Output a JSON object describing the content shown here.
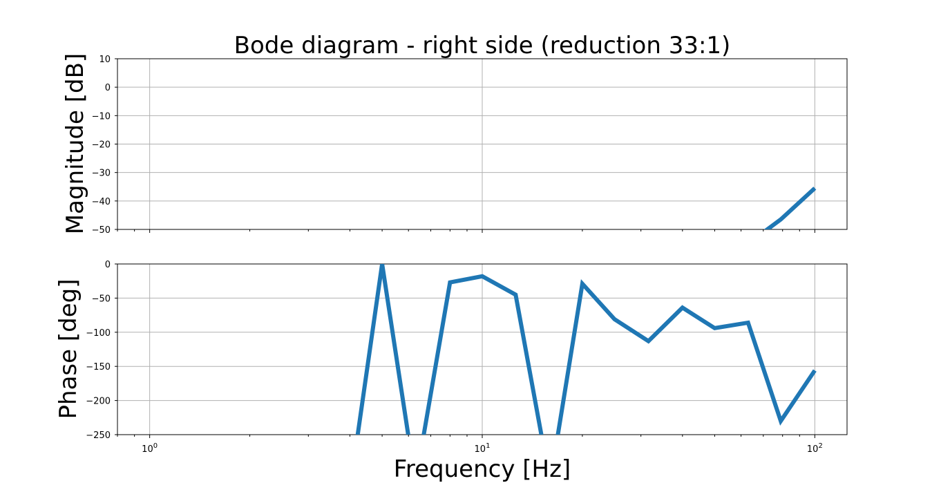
{
  "chart_data": {
    "type": "line",
    "title": "Bode diagram - right side (reduction 33:1)",
    "xlabel": "Frequency [Hz]",
    "xscale": "log",
    "xlim": [
      0.8,
      125
    ],
    "x_tick_labels": [
      "10^0",
      "10^1",
      "10^2"
    ],
    "grid": true,
    "color": "#1f77b4",
    "subplots": [
      {
        "name": "magnitude",
        "ylabel": "Magnitude [dB]",
        "ylim": [
          -50,
          10
        ],
        "y_ticks": [
          10,
          0,
          -10,
          -20,
          -30,
          -40,
          -50
        ],
        "series": [
          {
            "x": [
              63,
              79,
              100
            ],
            "y": [
              -55,
              -46.5,
              -35.5
            ]
          }
        ]
      },
      {
        "name": "phase",
        "ylabel": "Phase [deg]",
        "ylim": [
          -250,
          0
        ],
        "y_ticks": [
          0,
          -50,
          -100,
          -150,
          -200,
          -250
        ],
        "series": [
          {
            "x": [
              4,
              5,
              6.3,
              8,
              10,
              12.6,
              16,
              20,
              25,
              31.6,
              40,
              50,
              63,
              79,
              100
            ],
            "y": [
              -330,
              0,
              -320,
              -27,
              -18,
              -45,
              -320,
              -29,
              -81,
              -113,
              -64,
              -94,
              -86,
              -230,
              -156
            ]
          }
        ]
      }
    ]
  }
}
